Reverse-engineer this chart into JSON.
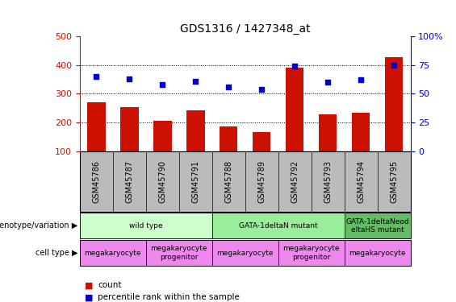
{
  "title": "GDS1316 / 1427348_at",
  "samples": [
    "GSM45786",
    "GSM45787",
    "GSM45790",
    "GSM45791",
    "GSM45788",
    "GSM45789",
    "GSM45792",
    "GSM45793",
    "GSM45794",
    "GSM45795"
  ],
  "counts": [
    270,
    252,
    205,
    242,
    187,
    167,
    390,
    228,
    232,
    428
  ],
  "percentiles": [
    65,
    63,
    58,
    61,
    56,
    54,
    74,
    60,
    62,
    75
  ],
  "bar_color": "#CC1100",
  "dot_color": "#0000CC",
  "ylim_left": [
    100,
    500
  ],
  "ylim_right": [
    0,
    100
  ],
  "yticks_left": [
    100,
    200,
    300,
    400,
    500
  ],
  "yticks_right": [
    0,
    25,
    50,
    75,
    100
  ],
  "grid_lines": [
    200,
    300,
    400
  ],
  "genotype_groups": [
    {
      "label": "wild type",
      "start": 0,
      "end": 4,
      "color": "#CCFFCC"
    },
    {
      "label": "GATA-1deltaN mutant",
      "start": 4,
      "end": 8,
      "color": "#99EE99"
    },
    {
      "label": "GATA-1deltaNeod\neltaHS mutant",
      "start": 8,
      "end": 10,
      "color": "#66BB66"
    }
  ],
  "cell_type_groups": [
    {
      "label": "megakaryocyte",
      "start": 0,
      "end": 2,
      "color": "#EE88EE"
    },
    {
      "label": "megakaryocyte\nprogenitor",
      "start": 2,
      "end": 4,
      "color": "#EE88EE"
    },
    {
      "label": "megakaryocyte",
      "start": 4,
      "end": 6,
      "color": "#EE88EE"
    },
    {
      "label": "megakaryocyte\nprogenitor",
      "start": 6,
      "end": 8,
      "color": "#EE88EE"
    },
    {
      "label": "megakaryocyte",
      "start": 8,
      "end": 10,
      "color": "#EE88EE"
    }
  ],
  "legend_count_label": "count",
  "legend_percentile_label": "percentile rank within the sample",
  "genotype_label": "genotype/variation",
  "cell_type_label": "cell type",
  "xtick_bg_color": "#BBBBBB",
  "plot_bg_color": "#FFFFFF",
  "right_axis_top_label": "100%"
}
